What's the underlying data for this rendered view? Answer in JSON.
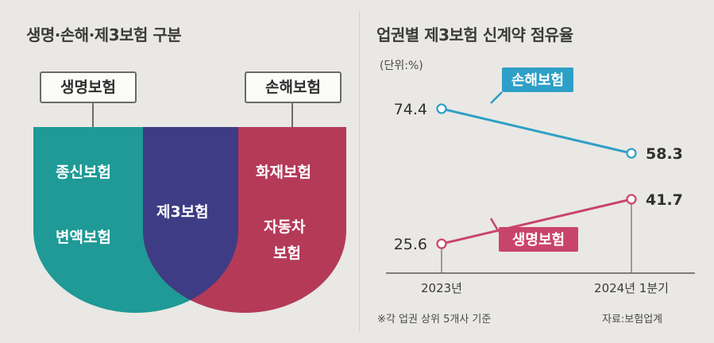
{
  "left_panel": {
    "title": "생명·손해·제3보험 구분",
    "life_callout": "생명보험",
    "nonlife_callout": "손해보험",
    "life_items": [
      "종신보험",
      "변액보험"
    ],
    "overlap_item": "제3보험",
    "nonlife_items": [
      "화재보험",
      "자동차",
      "보험"
    ],
    "colors": {
      "life": "#1f9a96",
      "overlap": "#3e3c84",
      "nonlife": "#b43a58"
    },
    "footnote": "※각 업권 상위 5개사 기준"
  },
  "right_panel": {
    "title": "업권별 제3보험 신계약 점유율",
    "unit": "(단위:%)",
    "source": "자료:보험업계"
  },
  "chart_data": {
    "type": "line",
    "title": "업권별 제3보험 신계약 점유율",
    "ylabel": "(단위:%)",
    "categories": [
      "2023년",
      "2024년 1분기"
    ],
    "series": [
      {
        "name": "손해보험",
        "values": [
          74.4,
          58.3
        ],
        "labels": [
          "74.4",
          "58.3"
        ],
        "color": "#2e9fc6"
      },
      {
        "name": "생명보험",
        "values": [
          25.6,
          41.7
        ],
        "labels": [
          "25.6",
          "41.7"
        ],
        "color": "#c9446b"
      }
    ],
    "ylim": [
      15,
      85
    ],
    "grid": false
  }
}
